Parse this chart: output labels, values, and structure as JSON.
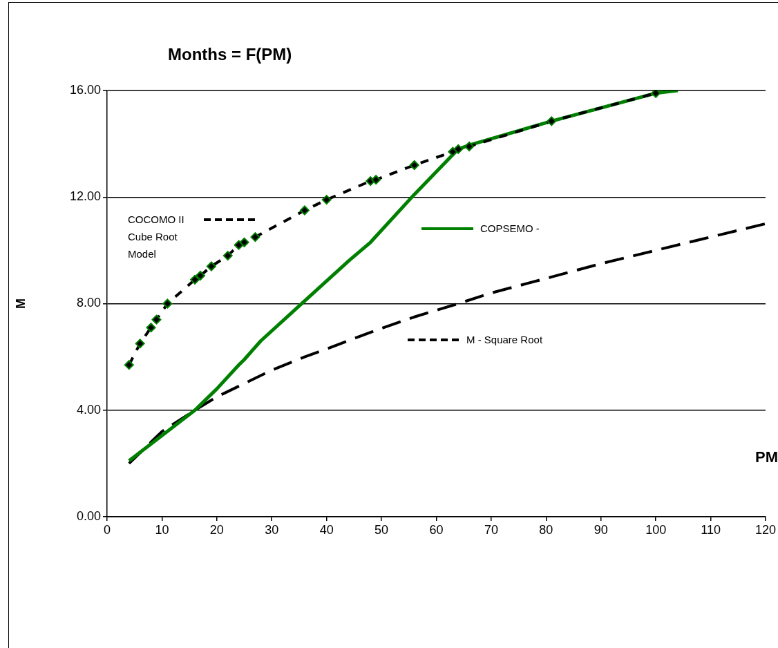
{
  "chart_data": {
    "type": "line",
    "title": "Months = F(PM)",
    "xlabel": "PM",
    "ylabel": "M",
    "xlim": [
      0,
      120
    ],
    "xticks": [
      0,
      10,
      20,
      30,
      40,
      50,
      60,
      70,
      80,
      90,
      100,
      110,
      120
    ],
    "ylim": [
      0,
      16
    ],
    "yticks": [
      {
        "value": 0,
        "label": "0.00"
      },
      {
        "value": 4,
        "label": "4.00"
      },
      {
        "value": 8,
        "label": "8.00"
      },
      {
        "value": 12,
        "label": "12.00"
      },
      {
        "value": 16,
        "label": "16.00"
      }
    ],
    "grid": "y",
    "legend": "center",
    "series": [
      {
        "type": "line",
        "name": "COCOMO II Cube Root Model",
        "color": "#000000",
        "line_style": "dashed",
        "marker": "diamond",
        "colors": [
          "#008000",
          "#008000",
          "#008000",
          "#008000",
          "#008000",
          "#008000",
          "#008000",
          "#008000",
          "#008000",
          "#008000",
          "#008000",
          "#008000",
          "#008000",
          "#008000",
          "#008000",
          "#008000",
          "#008000",
          "#008000",
          "#008000",
          "#008000",
          "#008000",
          "#008000"
        ],
        "x": [
          4,
          6,
          8,
          9,
          11,
          16,
          17,
          19,
          22,
          24,
          25,
          27,
          36,
          40,
          48,
          49,
          56,
          63,
          64,
          66,
          81,
          100
        ],
        "values": [
          5.7,
          6.5,
          7.1,
          7.4,
          8.0,
          8.9,
          9.05,
          9.4,
          9.8,
          10.2,
          10.3,
          10.5,
          11.5,
          11.9,
          12.6,
          12.65,
          13.2,
          13.7,
          13.8,
          13.9,
          14.85,
          15.9
        ]
      },
      {
        "type": "line",
        "name": "COPSEMO -",
        "color": "#008000",
        "line_style": "solid",
        "marker": "none",
        "x": [
          4,
          16,
          20,
          24,
          25,
          28,
          36,
          44,
          48,
          56,
          64,
          66,
          81,
          100,
          104
        ],
        "values": [
          2.1,
          4.0,
          4.8,
          5.7,
          5.9,
          6.6,
          8.1,
          9.6,
          10.3,
          12.1,
          13.8,
          13.95,
          14.85,
          15.9,
          16.0
        ]
      },
      {
        "type": "line",
        "name": "M - Square Root",
        "color": "#000000",
        "line_style": "dashed",
        "marker": "none",
        "x": [
          4,
          6,
          8,
          10,
          16,
          20,
          25,
          30,
          36,
          40,
          49,
          56,
          64,
          70,
          81,
          90,
          100,
          110,
          120
        ],
        "values": [
          2.0,
          2.4,
          2.8,
          3.2,
          4.0,
          4.5,
          5.0,
          5.5,
          6.0,
          6.3,
          7.0,
          7.5,
          8.0,
          8.4,
          9.0,
          9.5,
          10.0,
          10.5,
          11.0
        ]
      }
    ]
  }
}
